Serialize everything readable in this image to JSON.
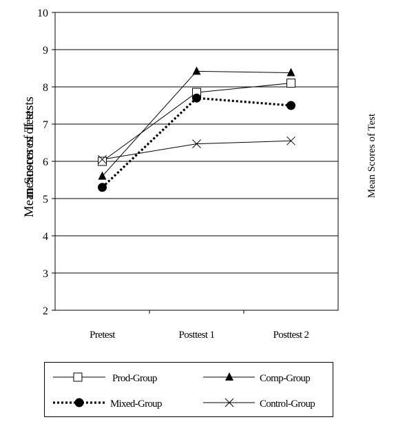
{
  "chart_data": {
    "type": "line",
    "categories": [
      "Pretest",
      "Posttest 1",
      "Posttest 2"
    ],
    "ylabel": "Mean Scores of Tests",
    "ylabel_overlay": "meanscores of tests",
    "ylabel_right": "Mean Scores of Test",
    "ylim": [
      2,
      10
    ],
    "yticks": [
      "2",
      "3",
      "4",
      "5",
      "6",
      "7",
      "8",
      "9",
      "10"
    ],
    "grid": true,
    "legend_position": "bottom",
    "series": [
      {
        "name": "Prod-Group",
        "values": [
          6.0,
          7.85,
          8.1
        ],
        "marker": "square-open",
        "line": "solid",
        "color": "#000000"
      },
      {
        "name": "Comp-Group",
        "values": [
          5.6,
          8.42,
          8.38
        ],
        "marker": "triangle-filled",
        "line": "solid",
        "color": "#000000"
      },
      {
        "name": "Mixed-Group",
        "values": [
          5.3,
          7.7,
          7.5
        ],
        "marker": "circle-filled",
        "line": "dotted",
        "color": "#000000"
      },
      {
        "name": "Control-Group",
        "values": [
          6.05,
          6.47,
          6.55
        ],
        "marker": "x",
        "line": "solid",
        "color": "#000000"
      }
    ]
  }
}
